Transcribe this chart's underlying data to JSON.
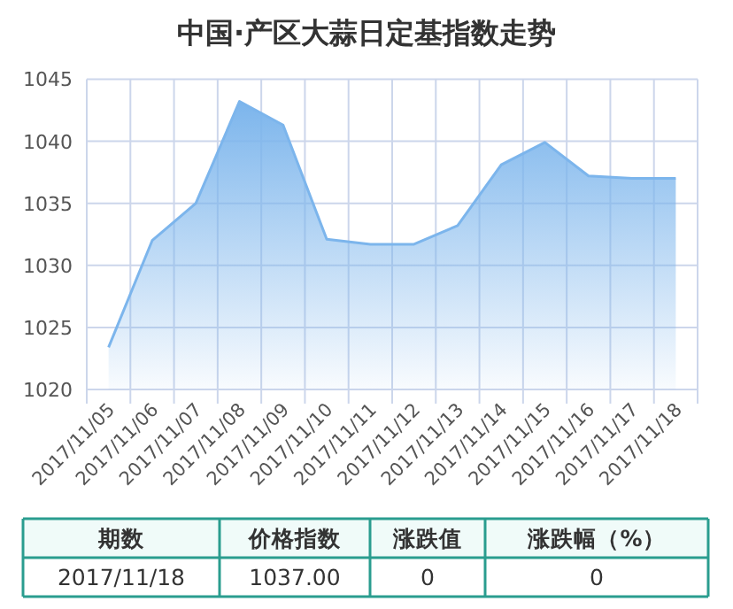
{
  "chart_data": {
    "type": "area",
    "title": "中国·产区大蒜日定基指数走势",
    "categories": [
      "2017/11/05",
      "2017/11/06",
      "2017/11/07",
      "2017/11/08",
      "2017/11/09",
      "2017/11/10",
      "2017/11/11",
      "2017/11/12",
      "2017/11/13",
      "2017/11/14",
      "2017/11/15",
      "2017/11/16",
      "2017/11/17",
      "2017/11/18"
    ],
    "series": [
      {
        "color": "#7cb5ec",
        "values": [
          1023.4,
          1032.0,
          1035.0,
          1043.2,
          1041.3,
          1032.1,
          1031.7,
          1031.7,
          1033.2,
          1038.1,
          1039.9,
          1037.2,
          1037.0,
          1037.0
        ]
      }
    ],
    "ylim": [
      1020,
      1045
    ],
    "yticks": [
      1020,
      1025,
      1030,
      1035,
      1040,
      1045
    ],
    "grid": true,
    "annotations": [
      "期数",
      "价格指数",
      "涨跌值",
      "涨跌幅（%）",
      "2017/11/18",
      "1037.00",
      "0",
      "0"
    ]
  }
}
